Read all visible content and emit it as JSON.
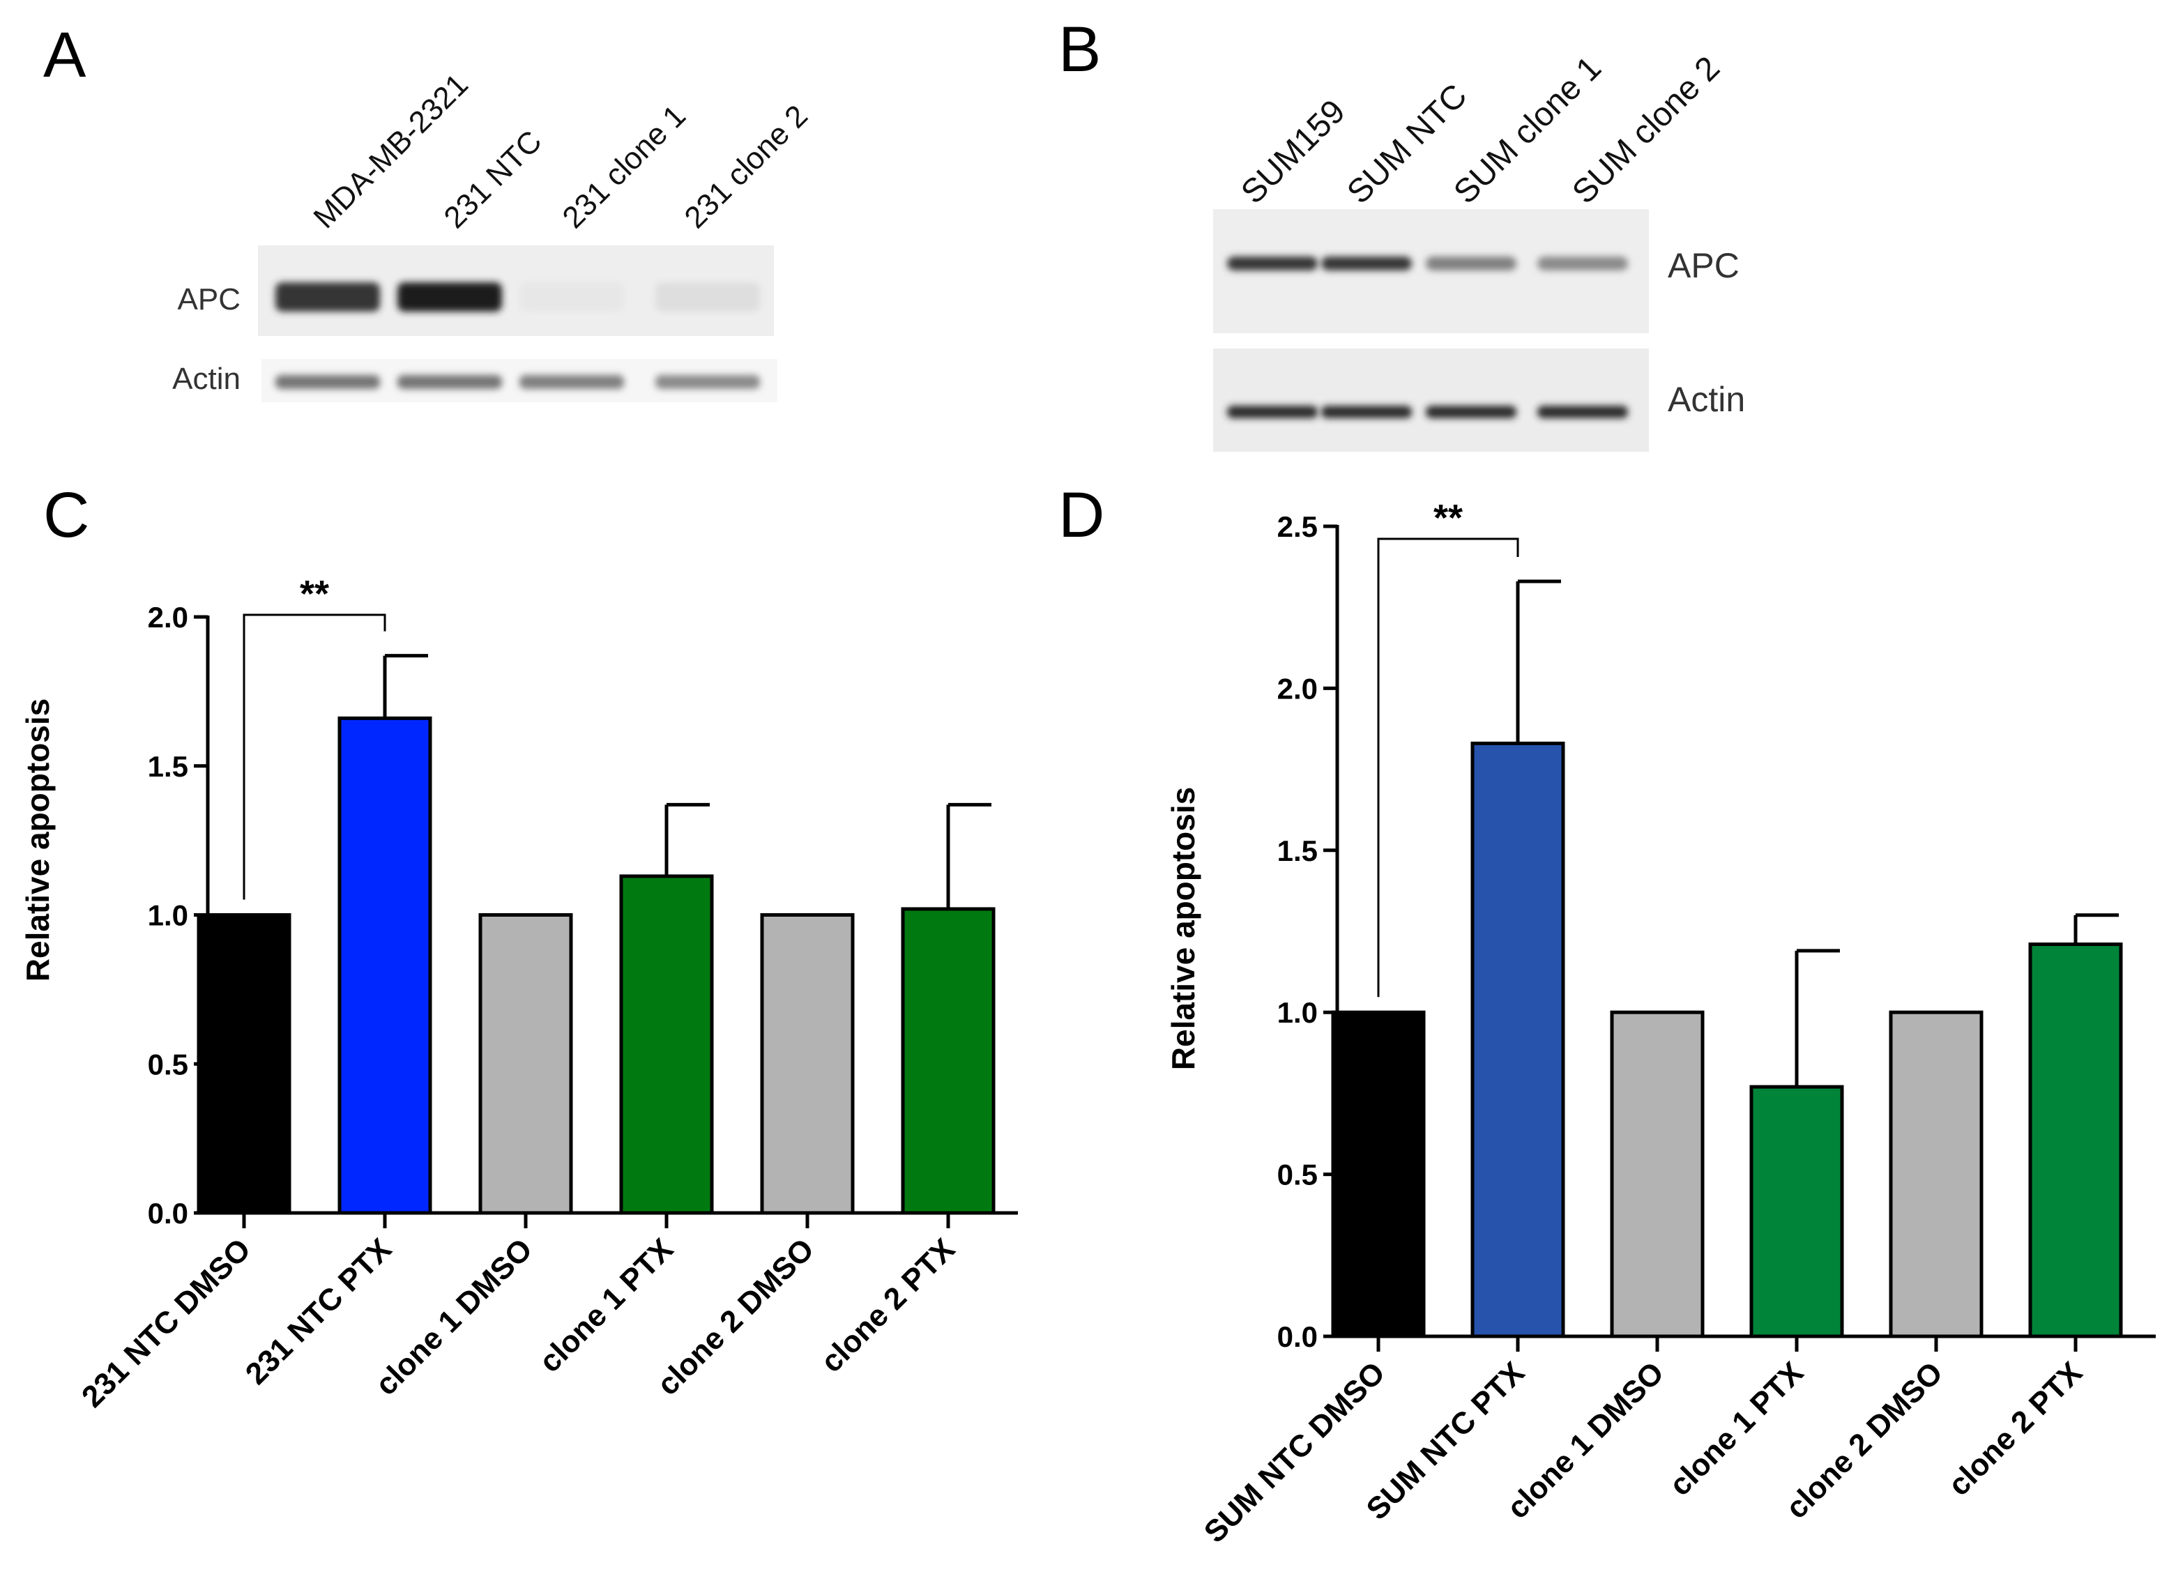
{
  "panels": {
    "A": {
      "letter": "A",
      "lane_labels": [
        "MDA-MB-2321",
        "231 NTC",
        "231 clone 1",
        "231 clone 2"
      ],
      "band_labels": [
        "APC",
        "Actin"
      ],
      "apc_intensity": [
        0.85,
        0.95,
        0.02,
        0.06
      ],
      "actin_intensity": [
        0.55,
        0.55,
        0.5,
        0.45
      ]
    },
    "B": {
      "letter": "B",
      "lane_labels": [
        "SUM159",
        "SUM NTC",
        "SUM clone 1",
        "SUM clone 2"
      ],
      "band_labels": [
        "APC",
        "Actin"
      ],
      "apc_intensity": [
        0.85,
        0.85,
        0.5,
        0.45
      ],
      "actin_intensity": [
        0.9,
        0.9,
        0.9,
        0.9
      ]
    },
    "C": {
      "letter": "C"
    },
    "D": {
      "letter": "D"
    }
  },
  "chart_data": [
    {
      "type": "bar",
      "panel": "C",
      "categories": [
        "231 NTC DMSO",
        "231 NTC PTX",
        "clone 1 DMSO",
        "clone 1 PTX",
        "clone 2 DMSO",
        "clone 2 PTX"
      ],
      "values": [
        1.0,
        1.66,
        1.0,
        1.13,
        1.0,
        1.02
      ],
      "error": [
        0,
        0.21,
        0,
        0.24,
        0,
        0.35
      ],
      "colors": [
        "#000000",
        "#0027ff",
        "#b3b3b3",
        "#007a10",
        "#b3b3b3",
        "#007a10"
      ],
      "ylabel": "Relative apoptosis",
      "ylim": [
        0,
        2.0
      ],
      "yticks": [
        0.0,
        0.5,
        1.0,
        1.5,
        2.0
      ],
      "ytick_labels": [
        "0.0",
        "0.5",
        "1.0",
        "1.5",
        "2.0"
      ],
      "significance": {
        "from": 0,
        "to": 1,
        "label": "**"
      }
    },
    {
      "type": "bar",
      "panel": "D",
      "categories": [
        "SUM NTC DMSO",
        "SUM NTC PTX",
        "clone 1 DMSO",
        "clone 1 PTX",
        "clone 2 DMSO",
        "clone 2 PTX"
      ],
      "values": [
        1.0,
        1.83,
        1.0,
        0.77,
        1.0,
        1.21
      ],
      "error": [
        0,
        0.5,
        0,
        0.42,
        0,
        0.09
      ],
      "colors": [
        "#000000",
        "#2753ad",
        "#b3b3b3",
        "#00843a",
        "#b3b3b3",
        "#00843a"
      ],
      "ylabel": "Relative apoptosis",
      "ylim": [
        0,
        2.5
      ],
      "yticks": [
        0.0,
        0.5,
        1.0,
        1.5,
        2.0,
        2.5
      ],
      "ytick_labels": [
        "0.0",
        "0.5",
        "1.0",
        "1.5",
        "2.0",
        "2.5"
      ],
      "significance": {
        "from": 0,
        "to": 1,
        "label": "**"
      }
    }
  ]
}
